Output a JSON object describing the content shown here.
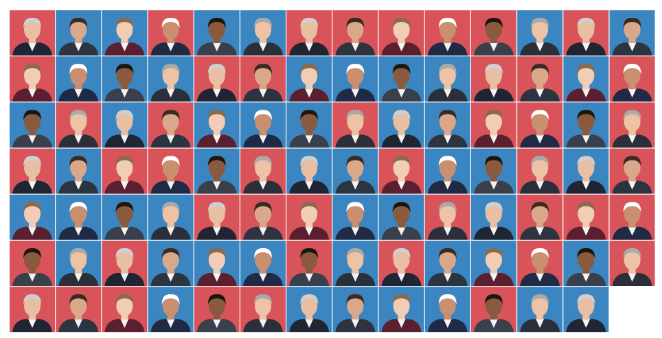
{
  "grid": {
    "columns": 14,
    "tiles": [
      "#d9545a",
      "#3b86c0",
      "#3b86c0",
      "#d9545a",
      "#3b86c0",
      "#3b86c0",
      "#d9545a",
      "#d9545a",
      "#d9545a",
      "#d9545a",
      "#d9545a",
      "#3b86c0",
      "#d9545a",
      "#3b86c0",
      "#d9545a",
      "#3b86c0",
      "#3b86c0",
      "#3b86c0",
      "#d9545a",
      "#d9545a",
      "#3b86c0",
      "#3b86c0",
      "#3b86c0",
      "#3b86c0",
      "#d9545a",
      "#d9545a",
      "#3b86c0",
      "#d9545a",
      "#3b86c0",
      "#d9545a",
      "#3b86c0",
      "#d9545a",
      "#3b86c0",
      "#3b86c0",
      "#3b86c0",
      "#d9545a",
      "#3b86c0",
      "#3b86c0",
      "#d9545a",
      "#d9545a",
      "#3b86c0",
      "#d9545a",
      "#d9545a",
      "#3b86c0",
      "#d9545a",
      "#d9545a",
      "#3b86c0",
      "#d9545a",
      "#3b86c0",
      "#3b86c0",
      "#d9545a",
      "#3b86c0",
      "#3b86c0",
      "#d9545a",
      "#3b86c0",
      "#d9545a",
      "#3b86c0",
      "#3b86c0",
      "#3b86c0",
      "#3b86c0",
      "#d9545a",
      "#d9545a",
      "#d9545a",
      "#3b86c0",
      "#3b86c0",
      "#d9545a",
      "#3b86c0",
      "#d9545a",
      "#d9545a",
      "#d9545a",
      "#d9545a",
      "#3b86c0",
      "#d9545a",
      "#3b86c0",
      "#3b86c0",
      "#3b86c0",
      "#d9545a",
      "#3b86c0",
      "#d9545a",
      "#3b86c0",
      "#3b86c0",
      "#d9545a",
      "#3b86c0",
      "#d9545a",
      "#d9545a",
      "#d9545a",
      "#d9545a",
      "#3b86c0",
      "#d9545a",
      "#d9545a",
      "#3b86c0",
      "#3b86c0",
      "#3b86c0",
      "#3b86c0",
      "#d9545a",
      "#3b86c0",
      "#3b86c0"
    ]
  }
}
